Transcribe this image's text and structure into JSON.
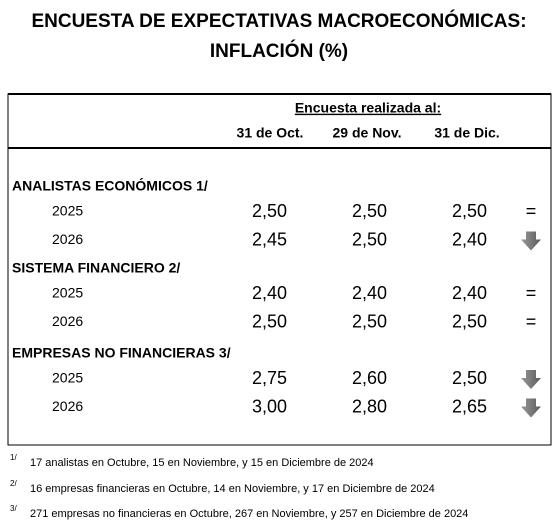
{
  "title": [
    "ENCUESTA DE EXPECTATIVAS MACROECONÓMICAS:",
    "INFLACIÓN (%)"
  ],
  "table": {
    "caption": "Encuesta realizada al:",
    "columns": [
      "31 de Oct.",
      "29 de Nov.",
      "31 de Dic."
    ],
    "groups": [
      {
        "label": "ANALISTAS ECONÓMICOS 1/",
        "rows": [
          {
            "year": "2025",
            "values": [
              "2,50",
              "2,50",
              "2,50"
            ],
            "trend": "="
          },
          {
            "year": "2026",
            "values": [
              "2,45",
              "2,50",
              "2,40"
            ]
          }
        ]
      },
      {
        "label": "SISTEMA FINANCIERO 2/",
        "rows": [
          {
            "year": "2025",
            "values": [
              "2,40",
              "2,40",
              "2,40"
            ],
            "trend": "="
          },
          {
            "year": "2026",
            "values": [
              "2,50",
              "2,50",
              "2,50"
            ],
            "trend": "="
          }
        ]
      },
      {
        "label": "EMPRESAS NO FINANCIERAS 3/",
        "rows": [
          {
            "year": "2025",
            "values": [
              "2,75",
              "2,60",
              "2,50"
            ]
          },
          {
            "year": "2026",
            "values": [
              "3,00",
              "2,80",
              "2,65"
            ]
          }
        ]
      }
    ]
  },
  "footnotes": [
    {
      "mark": "1/",
      "text": "17 analistas en Octubre, 15 en Noviembre, y 15 en Diciembre de 2024"
    },
    {
      "mark": "2/",
      "text": "16 empresas financieras en Octubre, 14 en Noviembre, y 17 en Diciembre de 2024"
    },
    {
      "mark": "3/",
      "text": "271 empresas no financieras en Octubre, 267 en Noviembre, y 257 en Diciembre de 2024"
    }
  ]
}
